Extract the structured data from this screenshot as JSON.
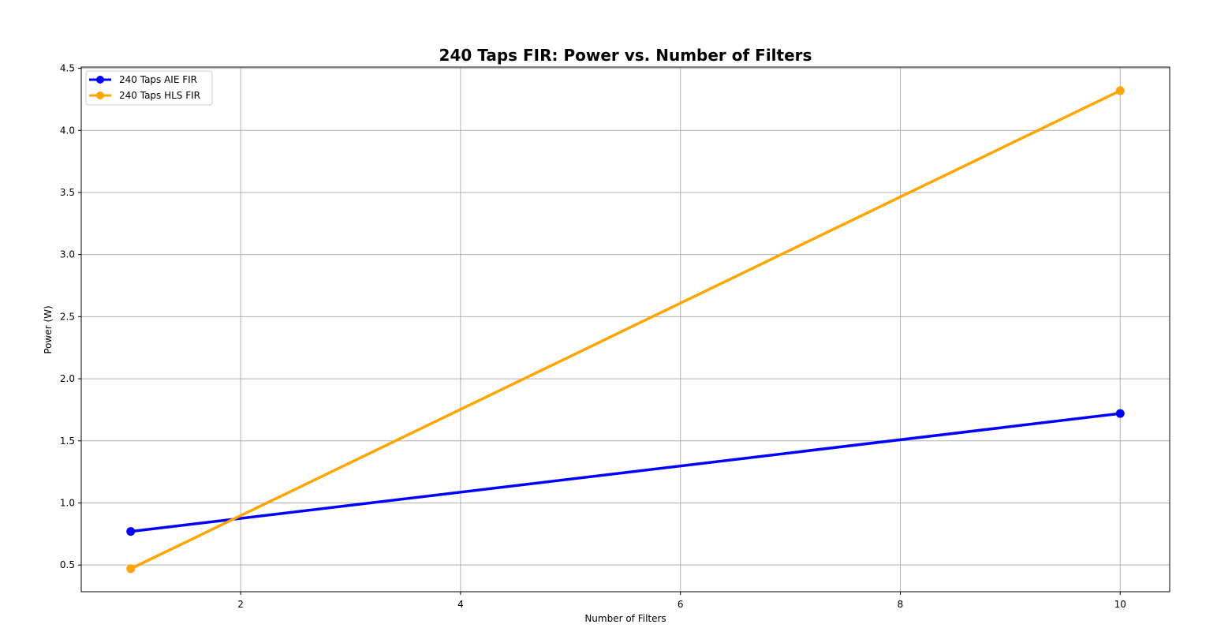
{
  "chart_data": {
    "type": "line",
    "title": "240 Taps FIR: Power vs. Number of Filters",
    "xlabel": "Number of Filters",
    "ylabel": "Power (W)",
    "xlim": [
      0.55,
      10.45
    ],
    "ylim": [
      0.285,
      4.51
    ],
    "xticks": [
      2,
      4,
      6,
      8,
      10
    ],
    "xtick_labels": [
      "2",
      "4",
      "6",
      "8",
      "10"
    ],
    "yticks": [
      0.5,
      1.0,
      1.5,
      2.0,
      2.5,
      3.0,
      3.5,
      4.0,
      4.5
    ],
    "ytick_labels": [
      "0.5",
      "1.0",
      "1.5",
      "2.0",
      "2.5",
      "3.0",
      "3.5",
      "4.0",
      "4.5"
    ],
    "grid": true,
    "legend_position": "top-left",
    "series": [
      {
        "name": "240 Taps AIE FIR",
        "color": "#0000ff",
        "marker": "circle",
        "x": [
          1,
          10
        ],
        "y": [
          0.77,
          1.72
        ]
      },
      {
        "name": "240 Taps HLS FIR",
        "color": "#ffa500",
        "marker": "circle",
        "x": [
          1,
          10
        ],
        "y": [
          0.47,
          4.32
        ]
      }
    ]
  }
}
